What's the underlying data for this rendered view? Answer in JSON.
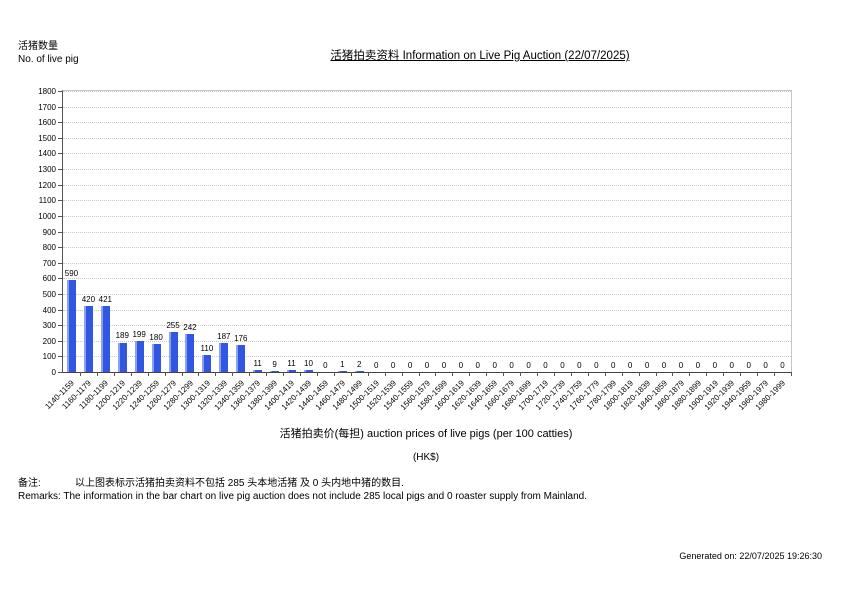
{
  "header": {
    "y_axis_title_zh": "活猪数量",
    "y_axis_title_en": "No. of live pig",
    "title": "活猪拍卖资料 Information on Live Pig Auction (22/07/2025)"
  },
  "chart_data": {
    "type": "bar",
    "title": "活猪拍卖资料 Information on Live Pig Auction (22/07/2025)",
    "ylabel": "活猪数量 No. of live pig",
    "xlabel": "活猪拍卖价(每担) auction prices of live pigs (per 100 catties) (HK$)",
    "ylim": [
      0,
      1800
    ],
    "ytick_step": 100,
    "grid": true,
    "legend_position": "none",
    "bar_color": "#3157e0",
    "categories": [
      "1140-1159",
      "1160-1179",
      "1180-1199",
      "1200-1219",
      "1220-1239",
      "1240-1259",
      "1260-1279",
      "1280-1299",
      "1300-1319",
      "1320-1339",
      "1340-1359",
      "1360-1379",
      "1380-1399",
      "1400-1419",
      "1420-1439",
      "1440-1459",
      "1460-1479",
      "1480-1499",
      "1500-1519",
      "1520-1539",
      "1540-1559",
      "1560-1579",
      "1580-1599",
      "1600-1619",
      "1620-1639",
      "1640-1659",
      "1660-1679",
      "1680-1699",
      "1700-1719",
      "1720-1739",
      "1740-1759",
      "1760-1779",
      "1780-1799",
      "1800-1819",
      "1820-1839",
      "1840-1859",
      "1860-1879",
      "1880-1899",
      "1900-1919",
      "1920-1939",
      "1940-1959",
      "1960-1979",
      "1980-1999"
    ],
    "values": [
      590,
      420,
      421,
      189,
      199,
      180,
      255,
      242,
      110,
      187,
      176,
      11,
      9,
      11,
      10,
      0,
      1,
      2,
      0,
      0,
      0,
      0,
      0,
      0,
      0,
      0,
      0,
      0,
      0,
      0,
      0,
      0,
      0,
      0,
      0,
      0,
      0,
      0,
      0,
      0,
      0,
      0,
      0
    ]
  },
  "x_axis": {
    "title_line1": "活猪拍卖价(每担) auction prices of live pigs (per 100 catties)",
    "title_line2": "(HK$)"
  },
  "remarks": {
    "label_zh": "备注:",
    "text_zh": "以上图表标示活猪拍卖资料不包括 285 头本地活猪 及 0 头内地中猪的数目.",
    "line_en": "Remarks: The information in the bar chart on live pig auction does not include 285 local pigs and 0 roaster supply from Mainland."
  },
  "footer": {
    "generated_on": "Generated on: 22/07/2025 19:26:30"
  }
}
